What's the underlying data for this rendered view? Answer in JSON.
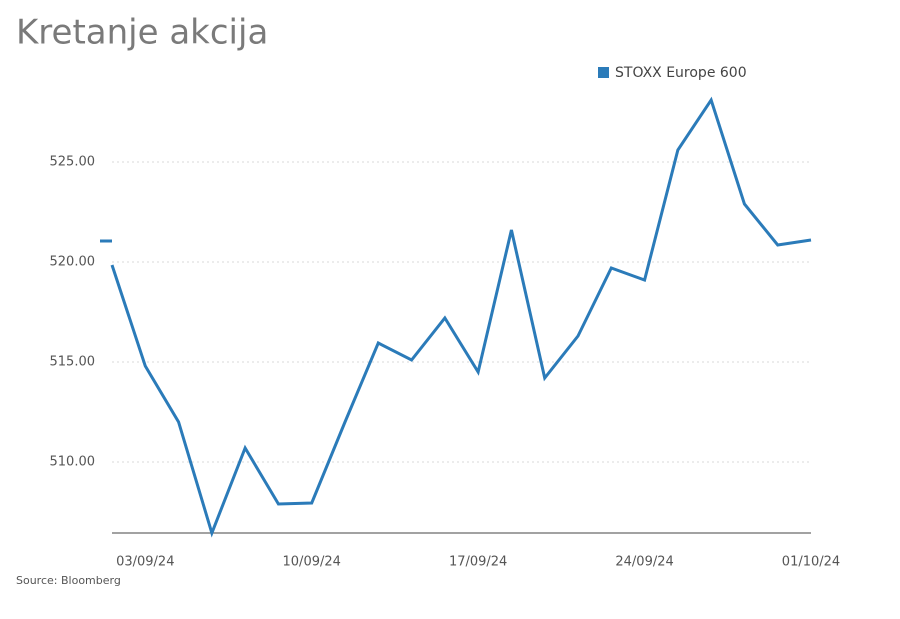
{
  "chart_data": {
    "type": "line",
    "title": "Kretanje akcija",
    "source": "Source: Bloomberg",
    "categories": [
      null,
      "03/09/24",
      null,
      null,
      null,
      null,
      "10/09/24",
      null,
      null,
      null,
      null,
      "17/09/24",
      null,
      null,
      null,
      null,
      "24/09/24",
      null,
      null,
      null,
      null,
      "01/10/24"
    ],
    "series": [
      {
        "name": "STOXX Europe 600",
        "color": "#2b7bb9",
        "values": [
          519.85,
          514.8,
          512.0,
          506.45,
          510.7,
          507.9,
          507.95,
          512.0,
          515.95,
          515.1,
          517.2,
          514.5,
          521.6,
          514.2,
          516.3,
          519.7,
          519.1,
          525.6,
          528.1,
          522.9,
          520.85,
          521.1
        ]
      }
    ],
    "ylim": [
      506.45,
      529
    ],
    "yticks": [
      {
        "value": 510,
        "label": "510.00"
      },
      {
        "value": 515,
        "label": "515.00"
      },
      {
        "value": 520,
        "label": "520.00"
      },
      {
        "value": 525,
        "label": "525.00"
      }
    ],
    "grid": true
  }
}
